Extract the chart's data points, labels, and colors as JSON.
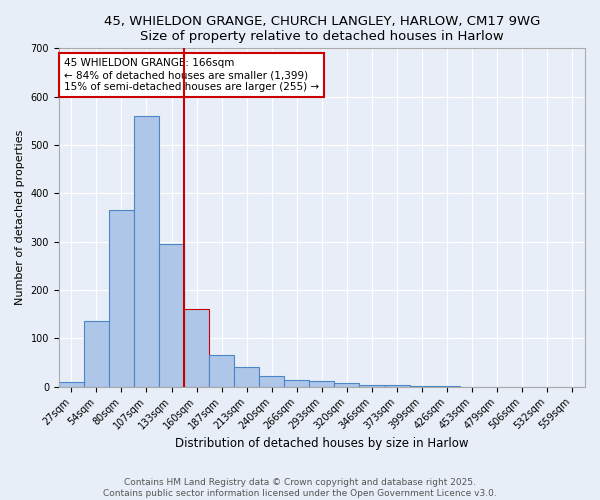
{
  "title1": "45, WHIELDON GRANGE, CHURCH LANGLEY, HARLOW, CM17 9WG",
  "title2": "Size of property relative to detached houses in Harlow",
  "xlabel": "Distribution of detached houses by size in Harlow",
  "ylabel": "Number of detached properties",
  "bar_labels": [
    "27sqm",
    "54sqm",
    "80sqm",
    "107sqm",
    "133sqm",
    "160sqm",
    "187sqm",
    "213sqm",
    "240sqm",
    "266sqm",
    "293sqm",
    "320sqm",
    "346sqm",
    "373sqm",
    "399sqm",
    "426sqm",
    "453sqm",
    "479sqm",
    "506sqm",
    "532sqm",
    "559sqm"
  ],
  "bar_values": [
    10,
    137,
    365,
    560,
    295,
    160,
    65,
    42,
    22,
    15,
    12,
    8,
    3,
    3,
    1,
    1,
    0,
    0,
    0,
    0,
    0
  ],
  "bar_color": "#aec6e8",
  "bar_edge_color": "#4c86c6",
  "highlight_index": 5,
  "highlight_bar_color": "#aec6e8",
  "highlight_bar_edge_color": "#cc0000",
  "vline_color": "#cc0000",
  "annotation_text": "45 WHIELDON GRANGE: 166sqm\n← 84% of detached houses are smaller (1,399)\n15% of semi-detached houses are larger (255) →",
  "annotation_box_color": "#ffffff",
  "annotation_border_color": "#cc0000",
  "ylim": [
    0,
    700
  ],
  "yticks": [
    0,
    100,
    200,
    300,
    400,
    500,
    600,
    700
  ],
  "bg_color": "#e8eef8",
  "plot_bg_color": "#e8eef8",
  "footer1": "Contains HM Land Registry data © Crown copyright and database right 2025.",
  "footer2": "Contains public sector information licensed under the Open Government Licence v3.0.",
  "title1_fontsize": 9.5,
  "title2_fontsize": 9,
  "xlabel_fontsize": 8.5,
  "ylabel_fontsize": 8,
  "tick_fontsize": 7,
  "annotation_fontsize": 7.5,
  "footer_fontsize": 6.5
}
